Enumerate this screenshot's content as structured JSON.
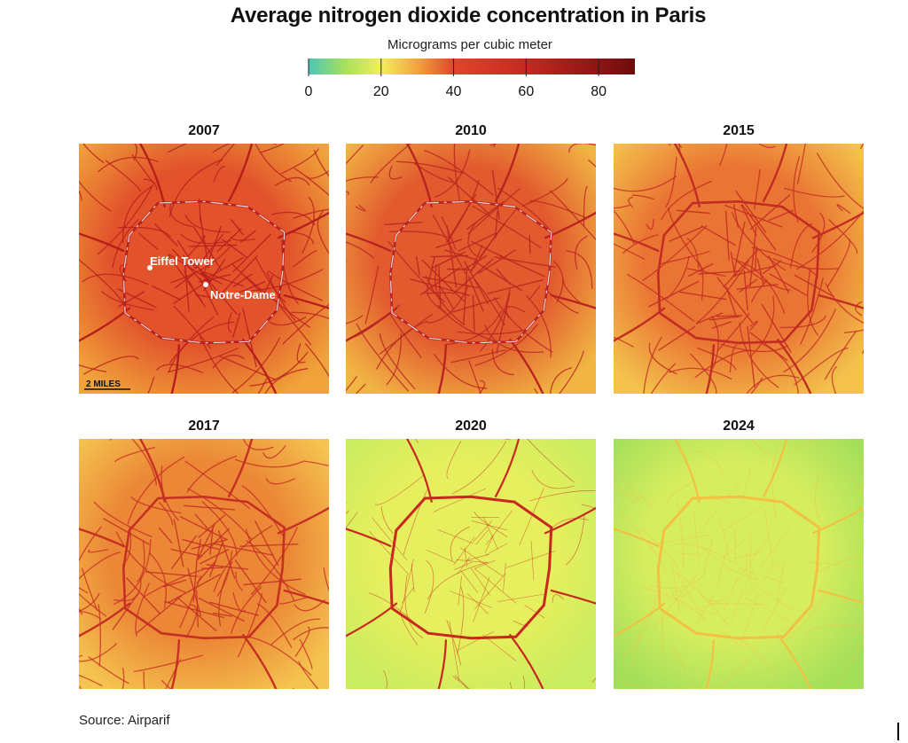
{
  "title": "Average nitrogen dioxide concentration in Paris",
  "legend": {
    "title": "Micrograms per cubic meter",
    "ticks": [
      "0",
      "20",
      "40",
      "60",
      "80"
    ],
    "tick_values": [
      0,
      20,
      40,
      60,
      80
    ],
    "range": [
      0,
      90
    ],
    "color_stops": [
      {
        "value": 0,
        "color": "#4cc7b6"
      },
      {
        "value": 10,
        "color": "#a7e05c"
      },
      {
        "value": 20,
        "color": "#f2ef59"
      },
      {
        "value": 30,
        "color": "#f2a43c"
      },
      {
        "value": 40,
        "color": "#e2452b"
      },
      {
        "value": 60,
        "color": "#c4291f"
      },
      {
        "value": 80,
        "color": "#8e1414"
      },
      {
        "value": 90,
        "color": "#6e0c0c"
      }
    ]
  },
  "panels": [
    {
      "year": "2007",
      "bg_outer": "#f0a33a",
      "bg_inner": "#e2532c",
      "road_color": "#b71f1c",
      "show_ring_dashes": true
    },
    {
      "year": "2010",
      "bg_outer": "#f1b544",
      "bg_inner": "#e25a2e",
      "road_color": "#b92420",
      "show_ring_dashes": true
    },
    {
      "year": "2015",
      "bg_outer": "#f3c14c",
      "bg_inner": "#ea7433",
      "road_color": "#c22c22",
      "show_ring_dashes": false
    },
    {
      "year": "2017",
      "bg_outer": "#f5c34f",
      "bg_inner": "#eb8736",
      "road_color": "#c63023",
      "show_ring_dashes": false
    },
    {
      "year": "2020",
      "bg_outer": "#c9ec60",
      "bg_inner": "#e6ef5d",
      "road_color": "#c7281f",
      "show_ring_dashes": false
    },
    {
      "year": "2024",
      "bg_outer": "#a4df5a",
      "bg_inner": "#d6ed5e",
      "road_color": "#f2c043",
      "show_ring_dashes": false
    }
  ],
  "annotations": {
    "eiffel_tower": "Eiffel Tower",
    "notre_dame": "Notre-Dame",
    "scale_bar": "2 MILES"
  },
  "source": "Source: Airparif"
}
